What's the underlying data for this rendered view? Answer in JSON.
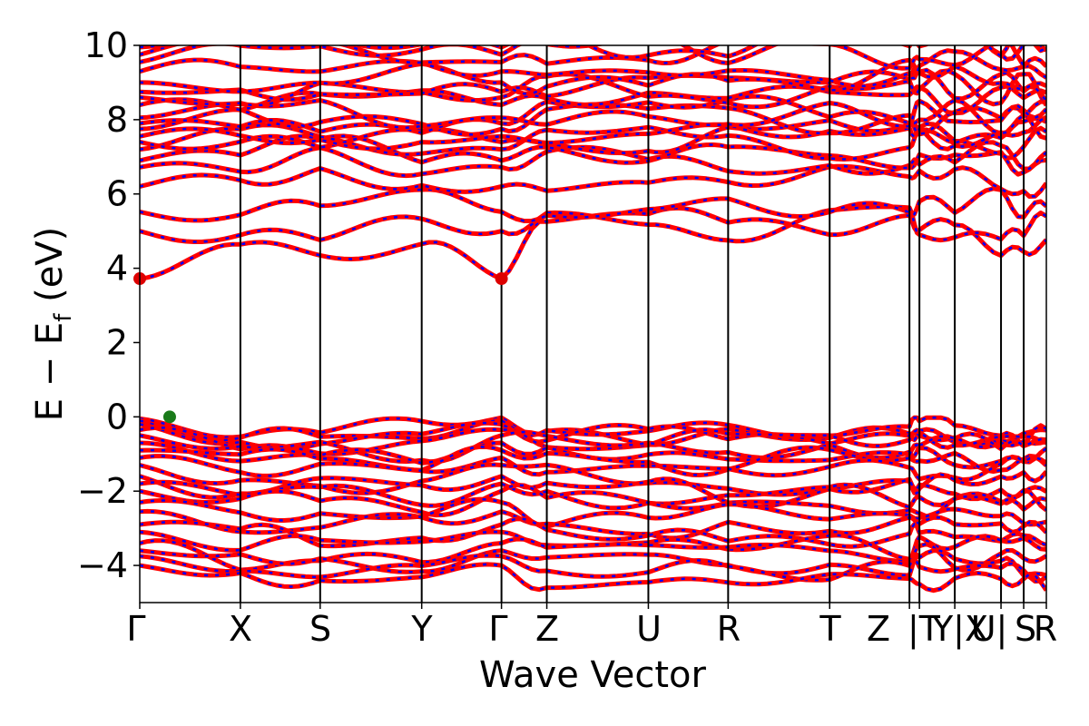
{
  "chart_data": {
    "type": "line",
    "xlabel": "Wave Vector",
    "ylabel": "E − E_f (eV)",
    "ylabel_main": "E − E",
    "ylabel_sub": "f",
    "ylabel_unit": " (eV)",
    "ylim": [
      -5,
      10
    ],
    "yticks": [
      "−4",
      "−2",
      "0",
      "2",
      "4",
      "6",
      "8",
      "10"
    ],
    "ytick_values": [
      -4,
      -2,
      0,
      2,
      4,
      6,
      8,
      10
    ],
    "xlim": [
      0,
      1
    ],
    "kpoints": [
      {
        "label": "Γ",
        "x": 0.0
      },
      {
        "label": "X",
        "x": 0.111
      },
      {
        "label": "S",
        "x": 0.199
      },
      {
        "label": "Y",
        "x": 0.311
      },
      {
        "label": "Γ",
        "x": 0.399
      },
      {
        "label": "Z",
        "x": 0.449
      },
      {
        "label": "U",
        "x": 0.561
      },
      {
        "label": "R",
        "x": 0.649
      },
      {
        "label": "T",
        "x": 0.761
      },
      {
        "label": "Z",
        "x": 0.849
      },
      {
        "label": "|T",
        "x": 0.86
      },
      {
        "label": "Y|X",
        "x": 0.899
      },
      {
        "label": "U|",
        "x": 0.95
      },
      {
        "label": "S",
        "x": 0.975
      },
      {
        "label": "R",
        "x": 1.0
      }
    ],
    "tick_labels": [
      "Γ",
      "X",
      "S",
      "Y",
      "Γ",
      "Z",
      "U",
      "R",
      "T",
      "Z",
      "|T",
      "Y|X",
      "U|",
      "S",
      "R"
    ],
    "series": [
      {
        "color": "#ff0000",
        "style": "solid"
      },
      {
        "color": "#0000ff",
        "style": "dashed"
      }
    ],
    "markers": [
      {
        "x": 0.0,
        "y": 3.72,
        "color": "#dd0000",
        "role": "CBM"
      },
      {
        "x": 0.399,
        "y": 3.72,
        "color": "#dd0000",
        "role": "CBM"
      },
      {
        "x": 0.033,
        "y": 0.0,
        "color": "#1a7a1a",
        "role": "VBM"
      }
    ],
    "conduction_bands_gamma": [
      3.72,
      5.0,
      5.52,
      6.2,
      6.72,
      6.9,
      7.2,
      7.4,
      7.55,
      7.75,
      7.9,
      8.05,
      8.4,
      8.6,
      8.75,
      9.0,
      9.3,
      9.55,
      9.75,
      9.95
    ],
    "valence_bands_gamma": [
      0.0,
      -0.1,
      -0.2,
      -0.35,
      -0.5,
      -0.7,
      -0.9,
      -1.1,
      -1.3,
      -1.6,
      -1.8,
      -2.0,
      -2.3,
      -2.55,
      -2.9,
      -3.1,
      -3.4,
      -3.6,
      -3.75,
      -4.0
    ],
    "band_gap": 3.72,
    "grid": false,
    "legend": "none"
  }
}
